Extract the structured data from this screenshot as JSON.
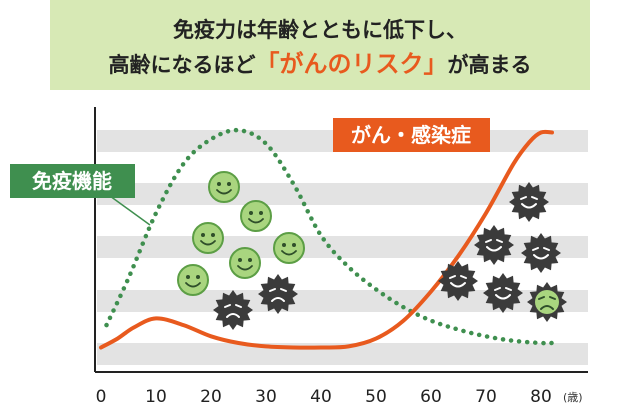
{
  "title": {
    "line1": "免疫力は年齢とともに低下し、",
    "line2_pre": "高齢になるほど",
    "line2_accent": "「がんのリスク」",
    "line2_post": "が高まる",
    "bg_color": "#d7e9b5"
  },
  "chart_data": {
    "type": "line",
    "x_ticks": [
      "0",
      "10",
      "20",
      "30",
      "40",
      "50",
      "60",
      "70",
      "80"
    ],
    "x_unit": "(歳)",
    "xlim": [
      0,
      85
    ],
    "ylim": [
      0,
      100
    ],
    "series": [
      {
        "name": "免疫機能",
        "style": "dotted",
        "color": "#3f8f4f",
        "x": [
          1,
          5,
          10,
          15,
          20,
          25,
          30,
          35,
          40,
          45,
          50,
          55,
          60,
          65,
          70,
          75,
          80,
          82
        ],
        "values": [
          12,
          33,
          62,
          84,
          95,
          99,
          93,
          75,
          52,
          38,
          28,
          20,
          14,
          10,
          7,
          5,
          4,
          4
        ]
      },
      {
        "name": "がん・感染症",
        "style": "solid",
        "color": "#e85a1e",
        "x": [
          0,
          3,
          6,
          10,
          15,
          20,
          25,
          30,
          35,
          40,
          45,
          50,
          55,
          60,
          65,
          70,
          75,
          78,
          80,
          82
        ],
        "values": [
          2,
          6,
          11,
          15,
          12,
          7,
          4,
          2.5,
          2,
          2,
          2.5,
          6,
          14,
          27,
          43,
          62,
          84,
          94,
          98,
          98
        ]
      }
    ]
  },
  "colors": {
    "stripe": "#e3e3e3",
    "axis": "#222222",
    "good_germ_fill": "#a9d57f",
    "good_germ_stroke": "#5c9e45",
    "bad_germ_fill": "#3b3b3b",
    "label_green": "#3f8f4f",
    "label_orange": "#e85a1e"
  },
  "labels": {
    "immune": "免疫機能",
    "cancer": "がん・感染症"
  },
  "icons": {
    "good_germ": "smiling-green-germ-icon",
    "bad_germ": "dark-spiky-virus-icon"
  }
}
